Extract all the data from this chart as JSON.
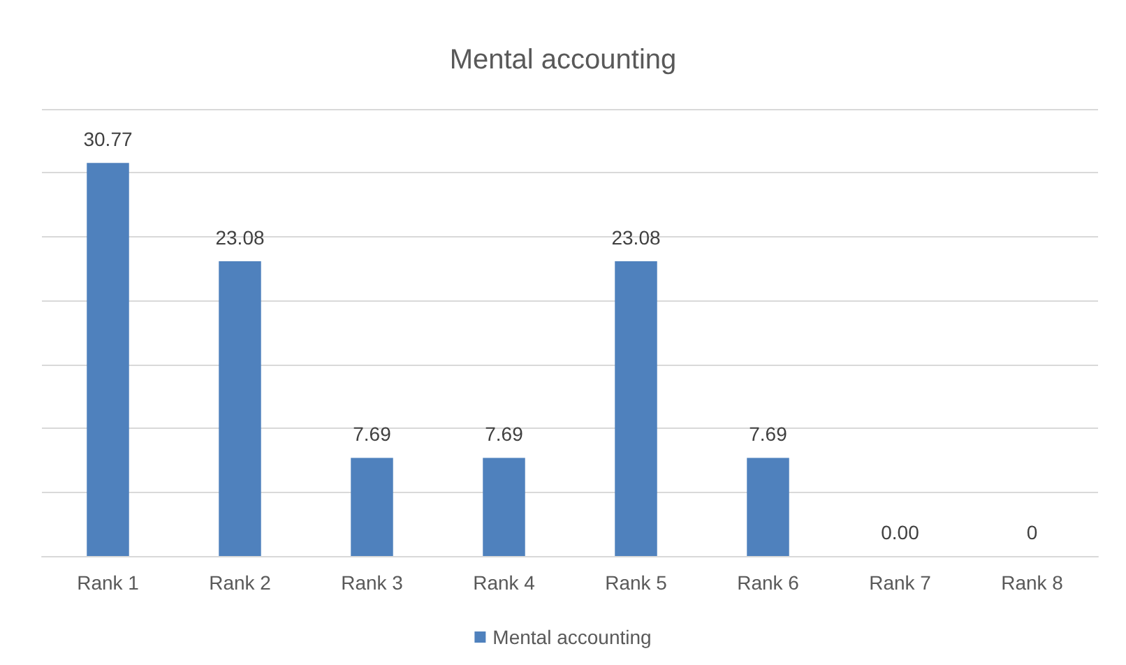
{
  "chart_data": {
    "type": "bar",
    "title": "Mental accounting",
    "categories": [
      "Rank 1",
      "Rank 2",
      "Rank 3",
      "Rank 4",
      "Rank 5",
      "Rank 6",
      "Rank 7",
      "Rank 8"
    ],
    "series": [
      {
        "name": "Mental accounting",
        "color": "#4f81bd",
        "values": [
          30.77,
          23.08,
          7.69,
          7.69,
          23.08,
          7.69,
          0,
          0
        ],
        "value_labels": [
          "30.77",
          "23.08",
          "7.69",
          "7.69",
          "23.08",
          "7.69",
          "0.00",
          "0"
        ]
      }
    ],
    "ylim": [
      0,
      35
    ],
    "yticks": [
      {
        "value": 0,
        "label": null
      },
      {
        "value": 5,
        "label": null
      },
      {
        "value": 10,
        "label": null
      },
      {
        "value": 15,
        "label": null
      },
      {
        "value": 20,
        "label": null
      },
      {
        "value": 25,
        "label": null
      },
      {
        "value": 30,
        "label": null
      },
      {
        "value": 35,
        "label": null
      }
    ],
    "tick_labels": "x",
    "grid": "y",
    "legend": "bottom"
  }
}
